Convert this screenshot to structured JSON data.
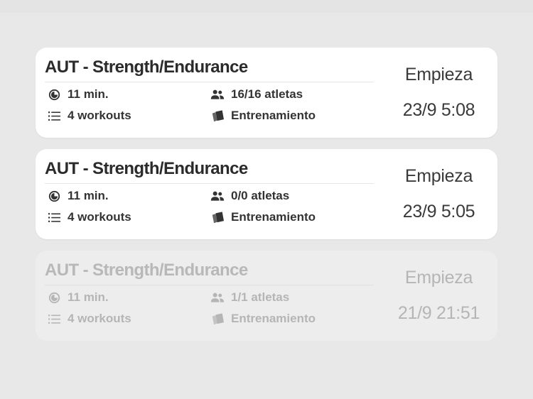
{
  "sessions": [
    {
      "title": "AUT - Strength/Endurance",
      "duration": "11 min.",
      "athletes": "16/16 atletas",
      "workouts": "4 workouts",
      "type": "Entrenamiento",
      "start_label": "Empieza",
      "start_date": "23/9 5:08",
      "disabled": false
    },
    {
      "title": "AUT - Strength/Endurance",
      "duration": "11 min.",
      "athletes": "0/0 atletas",
      "workouts": "4 workouts",
      "type": "Entrenamiento",
      "start_label": "Empieza",
      "start_date": "23/9 5:05",
      "disabled": false
    },
    {
      "title": "AUT - Strength/Endurance",
      "duration": "11 min.",
      "athletes": "1/1 atletas",
      "workouts": "4 workouts",
      "type": "Entrenamiento",
      "start_label": "Empieza",
      "start_date": "21/9 21:51",
      "disabled": true
    }
  ],
  "icons": {
    "duration": "timer-icon",
    "athletes": "people-icon",
    "workouts": "list-icon",
    "type": "cards-icon"
  },
  "colors": {
    "background": "#e8e8e8",
    "card": "#ffffff",
    "card_disabled": "#ededed",
    "text": "#2b2b2b",
    "text_disabled": "#b5b5b5"
  }
}
